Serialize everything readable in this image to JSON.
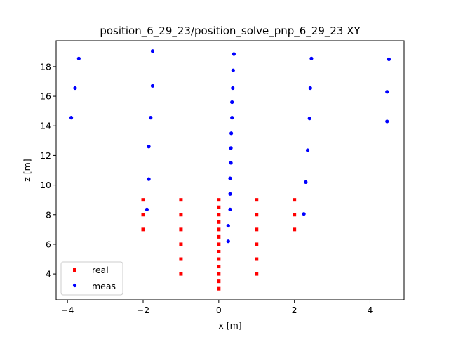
{
  "chart_data": {
    "type": "scatter",
    "title": "position_6_29_23/position_solve_pnp_6_29_23 XY",
    "xlabel": "x [m]",
    "ylabel": "z [m]",
    "xlim": [
      -4.3,
      4.9
    ],
    "ylim": [
      2.25,
      19.75
    ],
    "xticks": [
      -4,
      -2,
      0,
      2,
      4
    ],
    "yticks": [
      4,
      6,
      8,
      10,
      12,
      14,
      16,
      18
    ],
    "grid": false,
    "legend": "lower left",
    "series": [
      {
        "name": "real",
        "marker": "square",
        "color": "#ff0000",
        "points": [
          [
            -2,
            7
          ],
          [
            -2,
            8
          ],
          [
            -2,
            9
          ],
          [
            -1,
            4
          ],
          [
            -1,
            5
          ],
          [
            -1,
            6
          ],
          [
            -1,
            7
          ],
          [
            -1,
            8
          ],
          [
            -1,
            9
          ],
          [
            0,
            3
          ],
          [
            0,
            3.5
          ],
          [
            0,
            4
          ],
          [
            0,
            4.5
          ],
          [
            0,
            5
          ],
          [
            0,
            5.5
          ],
          [
            0,
            6
          ],
          [
            0,
            6.5
          ],
          [
            0,
            7
          ],
          [
            0,
            7.5
          ],
          [
            0,
            8
          ],
          [
            0,
            8.5
          ],
          [
            0,
            9
          ],
          [
            1,
            4
          ],
          [
            1,
            5
          ],
          [
            1,
            6
          ],
          [
            1,
            7
          ],
          [
            1,
            8
          ],
          [
            1,
            9
          ],
          [
            2,
            7
          ],
          [
            2,
            8
          ],
          [
            2,
            9
          ]
        ]
      },
      {
        "name": "meas",
        "marker": "circle",
        "color": "#0000ff",
        "points": [
          [
            -3.9,
            14.55
          ],
          [
            -3.8,
            16.55
          ],
          [
            -3.7,
            18.55
          ],
          [
            -1.9,
            8.35
          ],
          [
            -1.85,
            10.4
          ],
          [
            -1.85,
            12.6
          ],
          [
            -1.8,
            14.55
          ],
          [
            -1.75,
            16.7
          ],
          [
            -1.75,
            19.05
          ],
          [
            0.25,
            6.2
          ],
          [
            0.25,
            7.25
          ],
          [
            0.3,
            8.35
          ],
          [
            0.3,
            9.4
          ],
          [
            0.3,
            10.45
          ],
          [
            0.32,
            11.5
          ],
          [
            0.32,
            12.5
          ],
          [
            0.33,
            13.5
          ],
          [
            0.35,
            14.55
          ],
          [
            0.35,
            15.6
          ],
          [
            0.37,
            16.55
          ],
          [
            0.38,
            17.75
          ],
          [
            0.4,
            18.85
          ],
          [
            2.25,
            8.05
          ],
          [
            2.3,
            10.2
          ],
          [
            2.35,
            12.35
          ],
          [
            2.4,
            14.5
          ],
          [
            2.42,
            16.55
          ],
          [
            2.45,
            18.55
          ],
          [
            4.45,
            14.3
          ],
          [
            4.45,
            16.3
          ],
          [
            4.5,
            18.5
          ]
        ]
      }
    ]
  }
}
